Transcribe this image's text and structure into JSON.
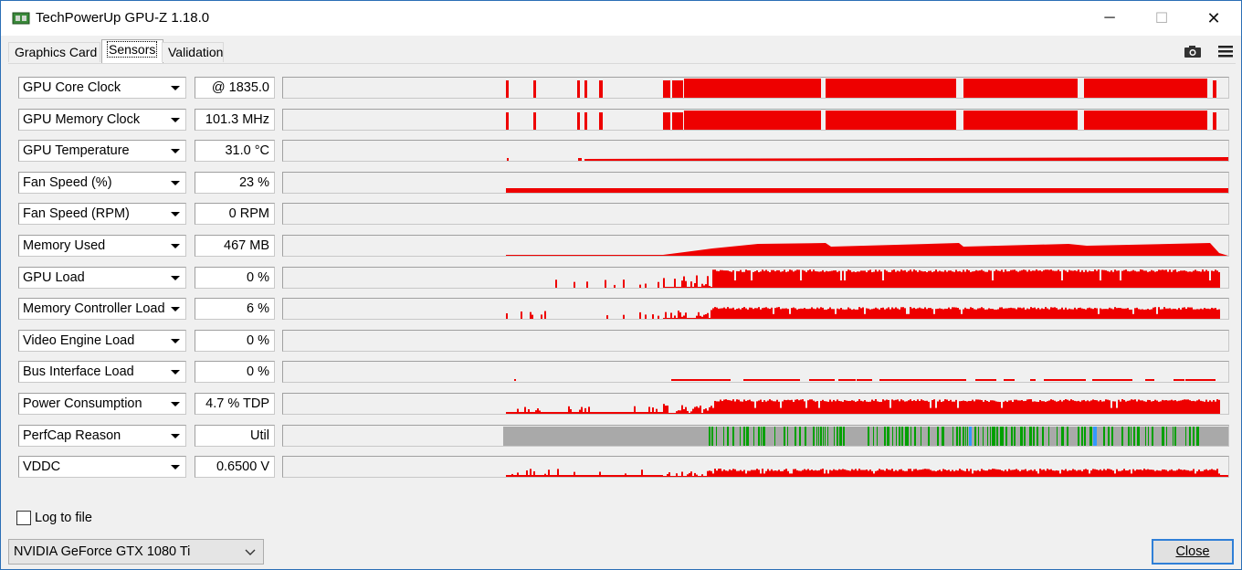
{
  "window": {
    "title": "TechPowerUp GPU-Z 1.18.0",
    "controls": {
      "minimize": "─",
      "maximize": "☐",
      "close": "✕"
    }
  },
  "tabs": [
    {
      "label": "Graphics Card",
      "active": false
    },
    {
      "label": "Sensors",
      "active": true
    },
    {
      "label": "Validation",
      "active": false
    }
  ],
  "toolbar": {
    "icons": [
      "camera-icon",
      "menu-icon"
    ]
  },
  "sensors": [
    {
      "label": "GPU Core Clock",
      "value": "@ 1835.0",
      "graph": "clock"
    },
    {
      "label": "GPU Memory Clock",
      "value": "101.3 MHz",
      "graph": "clock"
    },
    {
      "label": "GPU Temperature",
      "value": "31.0 °C",
      "graph": "temp"
    },
    {
      "label": "Fan Speed (%)",
      "value": "23 %",
      "graph": "fan"
    },
    {
      "label": "Fan Speed (RPM)",
      "value": "0 RPM",
      "graph": "none"
    },
    {
      "label": "Memory Used",
      "value": "467 MB",
      "graph": "memused"
    },
    {
      "label": "GPU Load",
      "value": "0 %",
      "graph": "load"
    },
    {
      "label": "Memory Controller Load",
      "value": "6 %",
      "graph": "mcload"
    },
    {
      "label": "Video Engine Load",
      "value": "0 %",
      "graph": "none"
    },
    {
      "label": "Bus Interface Load",
      "value": "0 %",
      "graph": "bus"
    },
    {
      "label": "Power Consumption",
      "value": "4.7 % TDP",
      "graph": "power"
    },
    {
      "label": "PerfCap Reason",
      "value": "Util",
      "graph": "perfcap"
    },
    {
      "label": "VDDC",
      "value": "0.6500 V",
      "graph": "vddc"
    }
  ],
  "colors": {
    "graph": "#ee0000",
    "perfcap_idle": "#a9a9a9",
    "perfcap_util": "#00a000",
    "perfcap_other": "#3399ff"
  },
  "log_to_file": {
    "label": "Log to file",
    "checked": false
  },
  "gpu_selector": {
    "selected": "NVIDIA GeForce GTX 1080 Ti"
  },
  "close_button": {
    "label": "Close"
  }
}
